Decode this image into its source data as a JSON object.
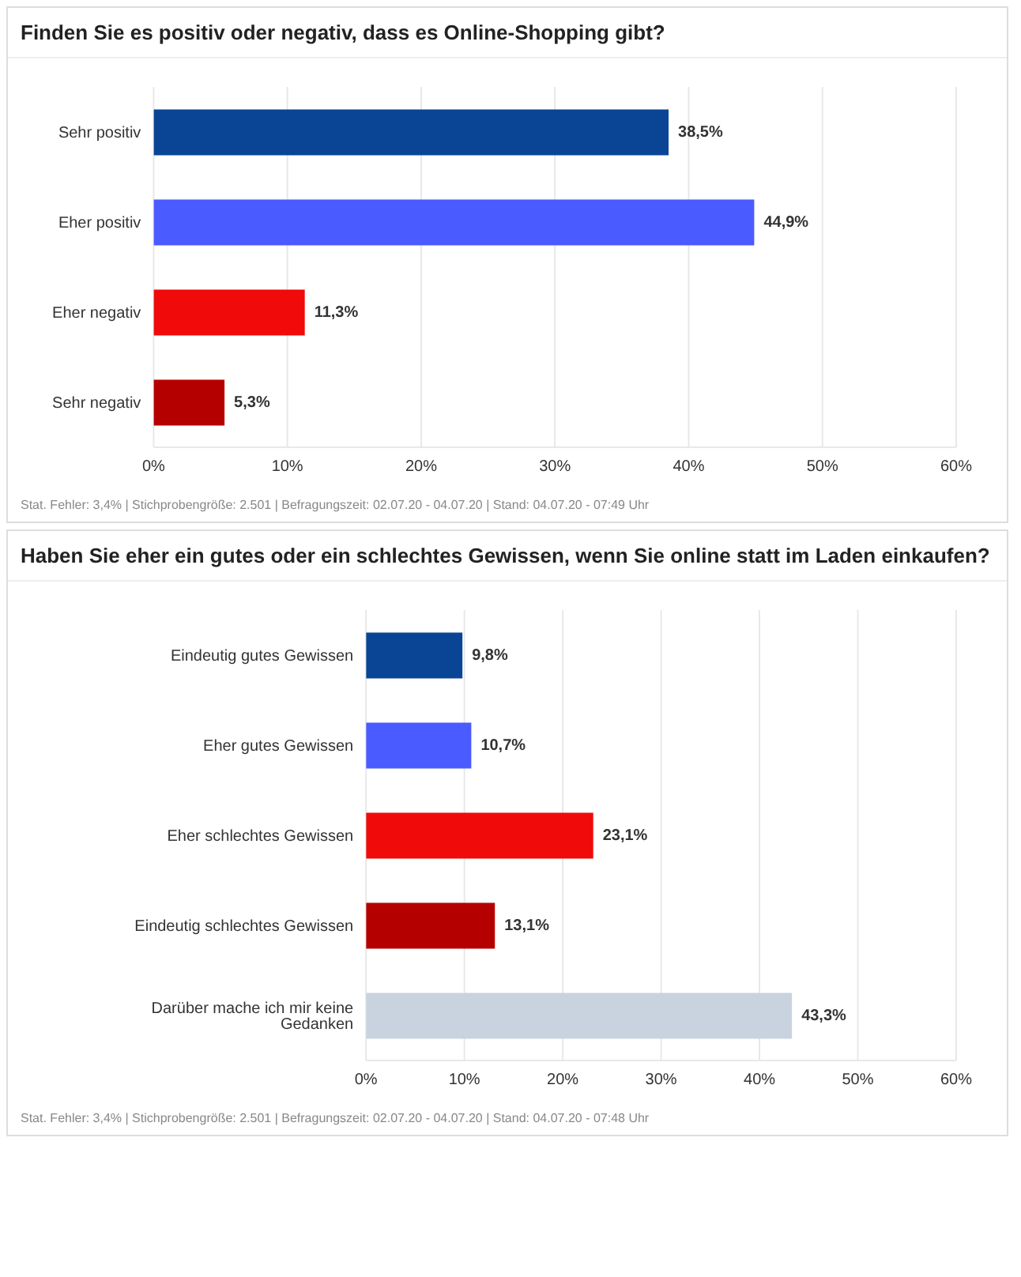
{
  "chart_data": [
    {
      "type": "bar",
      "orientation": "horizontal",
      "title": "Finden Sie es positiv oder negativ, dass es Online-Shopping gibt?",
      "categories": [
        "Sehr positiv",
        "Eher positiv",
        "Eher negativ",
        "Sehr negativ"
      ],
      "values": [
        38.5,
        44.9,
        11.3,
        5.3
      ],
      "colors": [
        "#0a4595",
        "#4a5bff",
        "#f00a0a",
        "#b50000"
      ],
      "value_labels": [
        "38,5%",
        "44,9%",
        "11,3%",
        "5,3%"
      ],
      "xlim": [
        0,
        60
      ],
      "xticks": [
        {
          "value": 0,
          "label": "0%"
        },
        {
          "value": 10,
          "label": "10%"
        },
        {
          "value": 20,
          "label": "20%"
        },
        {
          "value": 30,
          "label": "30%"
        },
        {
          "value": 40,
          "label": "40%"
        },
        {
          "value": 50,
          "label": "50%"
        },
        {
          "value": 60,
          "label": "60%"
        }
      ],
      "grid": "x",
      "annotations": [
        "Stat. Fehler: 3,4% | Stichprobengröße: 2.501 | Befragungszeit: 02.07.20 - 04.07.20 | Stand: 04.07.20 - 07:49 Uhr"
      ]
    },
    {
      "type": "bar",
      "orientation": "horizontal",
      "title": "Haben Sie eher ein gutes oder ein schlechtes Gewissen, wenn Sie online statt im Laden einkaufen?",
      "categories": [
        "Eindeutig gutes Gewissen",
        "Eher gutes Gewissen",
        "Eher schlechtes Gewissen",
        "Eindeutig schlechtes Gewissen",
        "Darüber mache ich mir keine Gedanken"
      ],
      "values": [
        9.8,
        10.7,
        23.1,
        13.1,
        43.3
      ],
      "colors": [
        "#0a4595",
        "#4a5bff",
        "#f00a0a",
        "#b50000",
        "#c8d3df"
      ],
      "value_labels": [
        "9,8%",
        "10,7%",
        "23,1%",
        "13,1%",
        "43,3%"
      ],
      "xlim": [
        0,
        60
      ],
      "xticks": [
        {
          "value": 0,
          "label": "0%"
        },
        {
          "value": 10,
          "label": "10%"
        },
        {
          "value": 20,
          "label": "20%"
        },
        {
          "value": 30,
          "label": "30%"
        },
        {
          "value": 40,
          "label": "40%"
        },
        {
          "value": 50,
          "label": "50%"
        },
        {
          "value": 60,
          "label": "60%"
        }
      ],
      "grid": "x",
      "annotations": [
        "Stat. Fehler: 3,4% | Stichprobengröße: 2.501 | Befragungszeit: 02.07.20 - 04.07.20 | Stand: 04.07.20 - 07:48 Uhr"
      ]
    }
  ]
}
